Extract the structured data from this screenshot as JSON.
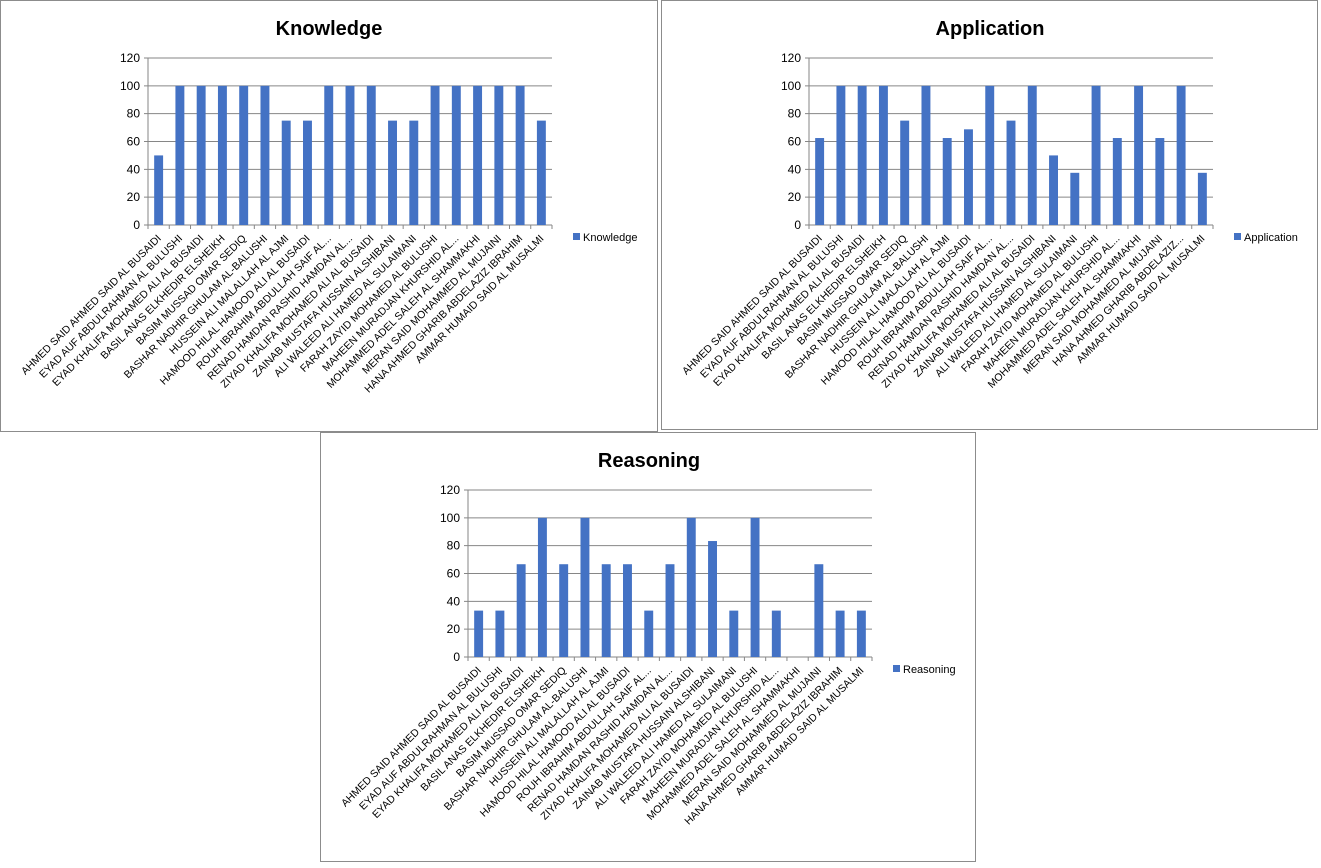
{
  "chart_data": [
    {
      "type": "bar",
      "title": "Knowledge",
      "xlabel": "",
      "ylabel": "",
      "ylim": [
        0,
        120
      ],
      "yticks": [
        "0",
        "20",
        "40",
        "60",
        "80",
        "100",
        "120"
      ],
      "grid": true,
      "legend": "right",
      "color": "#4472C4",
      "categories": [
        "AHMED SAID AHMED SAID AL BUSAIDI",
        "EYAD AUF ABDULRAHMAN AL BULUSHI",
        "EYAD KHALIFA MOHAMED ALI AL BUSAIDI",
        "BASIL ANAS ELKHEDIR ELSHEIKH",
        "BASIM MUSSAD OMAR SEDIQ",
        "BASHAR NADHIR GHULAM AL-BALUSHI",
        "HUSSEIN ALI MALALLAH AL AJMI",
        "HAMOOD HILAL HAMOOD ALI AL BUSAIDI",
        "ROUH IBRAHIM ABDULLAH SAIF AL...",
        "RENAD HAMDAN RASHID HAMDAN AL...",
        "ZIYAD KHALIFA MOHAMED ALI AL BUSAIDI",
        "ZAINAB MUSTAFA HUSSAIN ALSHIBANI",
        "ALI WALEED ALI HAMED AL SULAIMANI",
        "FARAH ZAYID MOHAMED AL BULUSHI",
        "MAHEEN MURADJAN KHURSHID AL...",
        "MOHAMMED ADEL SALEH AL SHAMMAKHI",
        "MERAN SAID MOHAMMED AL MUJAINI",
        "HANA AHMED GHARIB ABDELAZIZ IBRAHIM",
        "AMMAR HUMAID SAID AL MUSALMI"
      ],
      "series": [
        {
          "name": "Knowledge",
          "values": [
            50,
            100,
            100,
            100,
            100,
            100,
            75,
            75,
            100,
            100,
            100,
            75,
            75,
            100,
            100,
            100,
            100,
            100,
            75
          ]
        }
      ]
    },
    {
      "type": "bar",
      "title": "Application",
      "xlabel": "",
      "ylabel": "",
      "ylim": [
        0,
        120
      ],
      "yticks": [
        "0",
        "20",
        "40",
        "60",
        "80",
        "100",
        "120"
      ],
      "grid": true,
      "legend": "right",
      "color": "#4472C4",
      "categories": [
        "AHMED SAID AHMED SAID AL BUSAIDI",
        "EYAD AUF ABDULRAHMAN AL BULUSHI",
        "EYAD KHALIFA MOHAMED ALI AL BUSAIDI",
        "BASIL ANAS ELKHEDIR ELSHEIKH",
        "BASIM MUSSAD OMAR SEDIQ",
        "BASHAR NADHIR GHULAM AL-BALUSHI",
        "HUSSEIN ALI MALALLAH AL AJMI",
        "HAMOOD HILAL HAMOOD ALI AL BUSAIDI",
        "ROUH IBRAHIM ABDULLAH SAIF AL...",
        "RENAD HAMDAN RASHID HAMDAN AL...",
        "ZIYAD KHALIFA MOHAMED ALI AL BUSAIDI",
        "ZAINAB MUSTAFA HUSSAIN ALSHIBANI",
        "ALI WALEED ALI HAMED AL SULAIMANI",
        "FARAH ZAYID MOHAMED AL BULUSHI",
        "MAHEEN MURADJAN KHURSHID AL...",
        "MOHAMMED ADEL SALEH AL SHAMMAKHI",
        "MERAN SAID MOHAMMED AL MUJAINI",
        "HANA AHMED GHARIB ABDELAZIZ...",
        "AMMAR HUMAID SAID AL MUSALMI"
      ],
      "series": [
        {
          "name": "Application",
          "values": [
            62.5,
            100,
            100,
            100,
            75,
            100,
            62.5,
            68.75,
            100,
            75,
            100,
            50,
            37.5,
            100,
            62.5,
            100,
            62.5,
            100,
            37.5
          ]
        }
      ]
    },
    {
      "type": "bar",
      "title": "Reasoning",
      "xlabel": "",
      "ylabel": "",
      "ylim": [
        0,
        120
      ],
      "yticks": [
        "0",
        "20",
        "40",
        "60",
        "80",
        "100",
        "120"
      ],
      "grid": true,
      "legend": "right",
      "color": "#4472C4",
      "categories": [
        "AHMED SAID AHMED SAID AL BUSAIDI",
        "EYAD AUF ABDULRAHMAN AL BULUSHI",
        "EYAD KHALIFA MOHAMED ALI AL BUSAIDI",
        "BASIL ANAS ELKHEDIR ELSHEIKH",
        "BASIM MUSSAD OMAR SEDIQ",
        "BASHAR NADHIR GHULAM AL-BALUSHI",
        "HUSSEIN ALI MALALLAH AL AJMI",
        "HAMOOD HILAL HAMOOD ALI AL BUSAIDI",
        "ROUH IBRAHIM ABDULLAH SAIF AL...",
        "RENAD HAMDAN RASHID HAMDAN AL...",
        "ZIYAD KHALIFA MOHAMED ALI AL BUSAIDI",
        "ZAINAB MUSTAFA HUSSAIN ALSHIBANI",
        "ALI WALEED ALI HAMED AL SULAIMANI",
        "FARAH ZAYID MOHAMED AL BULUSHI",
        "MAHEEN MURADJAN KHURSHID AL...",
        "MOHAMMED ADEL SALEH AL SHAMMAKHI",
        "MERAN SAID MOHAMMED AL MUJAINI",
        "HANA AHMED GHARIB ABDELAZIZ IBRAHIM",
        "AMMAR HUMAID SAID AL MUSALMI"
      ],
      "series": [
        {
          "name": "Reasoning",
          "values": [
            33.33,
            33.33,
            66.67,
            100,
            66.67,
            100,
            66.67,
            66.67,
            33.33,
            66.67,
            100,
            83.33,
            33.33,
            100,
            33.33,
            0,
            66.67,
            33.33,
            33.33
          ]
        }
      ]
    }
  ]
}
